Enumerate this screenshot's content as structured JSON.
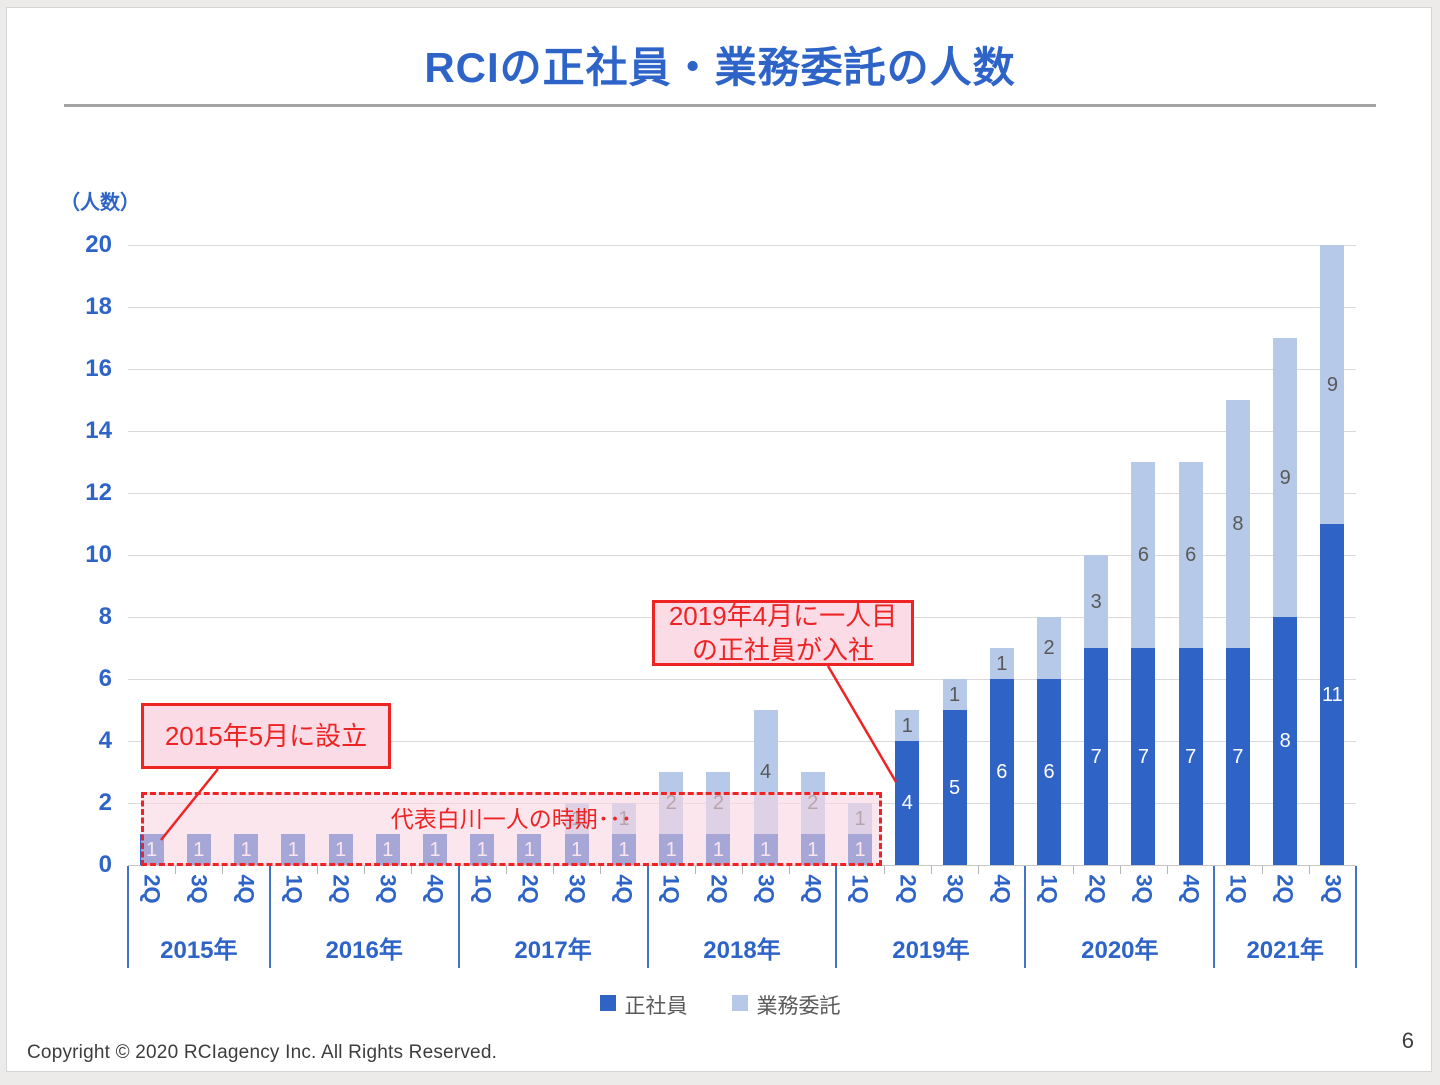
{
  "slide": {
    "title": "RCIの正社員・業務委託の人数",
    "footer": "Copyright © 2020 RCIagency Inc. All Rights Reserved.",
    "page_number": "6"
  },
  "colors": {
    "accent_blue": "#2e64c8",
    "fulltime_bar": "#2f63c6",
    "contractor_bar": "#b7c9e8",
    "annotation_red": "#ee2424",
    "callout_fill": "#fbdce6",
    "region_fill": "rgba(248,214,226,0.6)",
    "legend_text": "#595959"
  },
  "chart_data": {
    "type": "bar",
    "stacked": true,
    "unit_label": "（人数）",
    "ylim": [
      0,
      20
    ],
    "ytick_step": 2,
    "grid": true,
    "legend_position": "bottom",
    "years": [
      {
        "label": "2015年",
        "quarters": [
          "2Q",
          "3Q",
          "4Q"
        ]
      },
      {
        "label": "2016年",
        "quarters": [
          "1Q",
          "2Q",
          "3Q",
          "4Q"
        ]
      },
      {
        "label": "2017年",
        "quarters": [
          "1Q",
          "2Q",
          "3Q",
          "4Q"
        ]
      },
      {
        "label": "2018年",
        "quarters": [
          "1Q",
          "2Q",
          "3Q",
          "4Q"
        ]
      },
      {
        "label": "2019年",
        "quarters": [
          "1Q",
          "2Q",
          "3Q",
          "4Q"
        ]
      },
      {
        "label": "2020年",
        "quarters": [
          "1Q",
          "2Q",
          "3Q",
          "4Q"
        ]
      },
      {
        "label": "2021年",
        "quarters": [
          "1Q",
          "2Q",
          "3Q"
        ]
      }
    ],
    "series": [
      {
        "name": "正社員",
        "color": "#2f63c6",
        "label_color": "#ffffff",
        "values": [
          1,
          1,
          1,
          1,
          1,
          1,
          1,
          1,
          1,
          1,
          1,
          1,
          1,
          1,
          1,
          1,
          4,
          5,
          6,
          6,
          7,
          7,
          7,
          7,
          8,
          11
        ]
      },
      {
        "name": "業務委託",
        "color": "#b7c9e8",
        "label_color": "#595959",
        "values": [
          0,
          0,
          0,
          0,
          0,
          0,
          0,
          0,
          0,
          1,
          1,
          2,
          2,
          4,
          2,
          1,
          1,
          1,
          1,
          2,
          3,
          6,
          6,
          8,
          9,
          9
        ]
      }
    ],
    "annotations": [
      {
        "id": "founding",
        "text": "2015年5月に設立"
      },
      {
        "id": "first-employee",
        "text": "2019年4月に一人目\nの正社員が入社"
      },
      {
        "id": "solo-period",
        "text": "代表白川一人の時期･･･"
      }
    ]
  }
}
